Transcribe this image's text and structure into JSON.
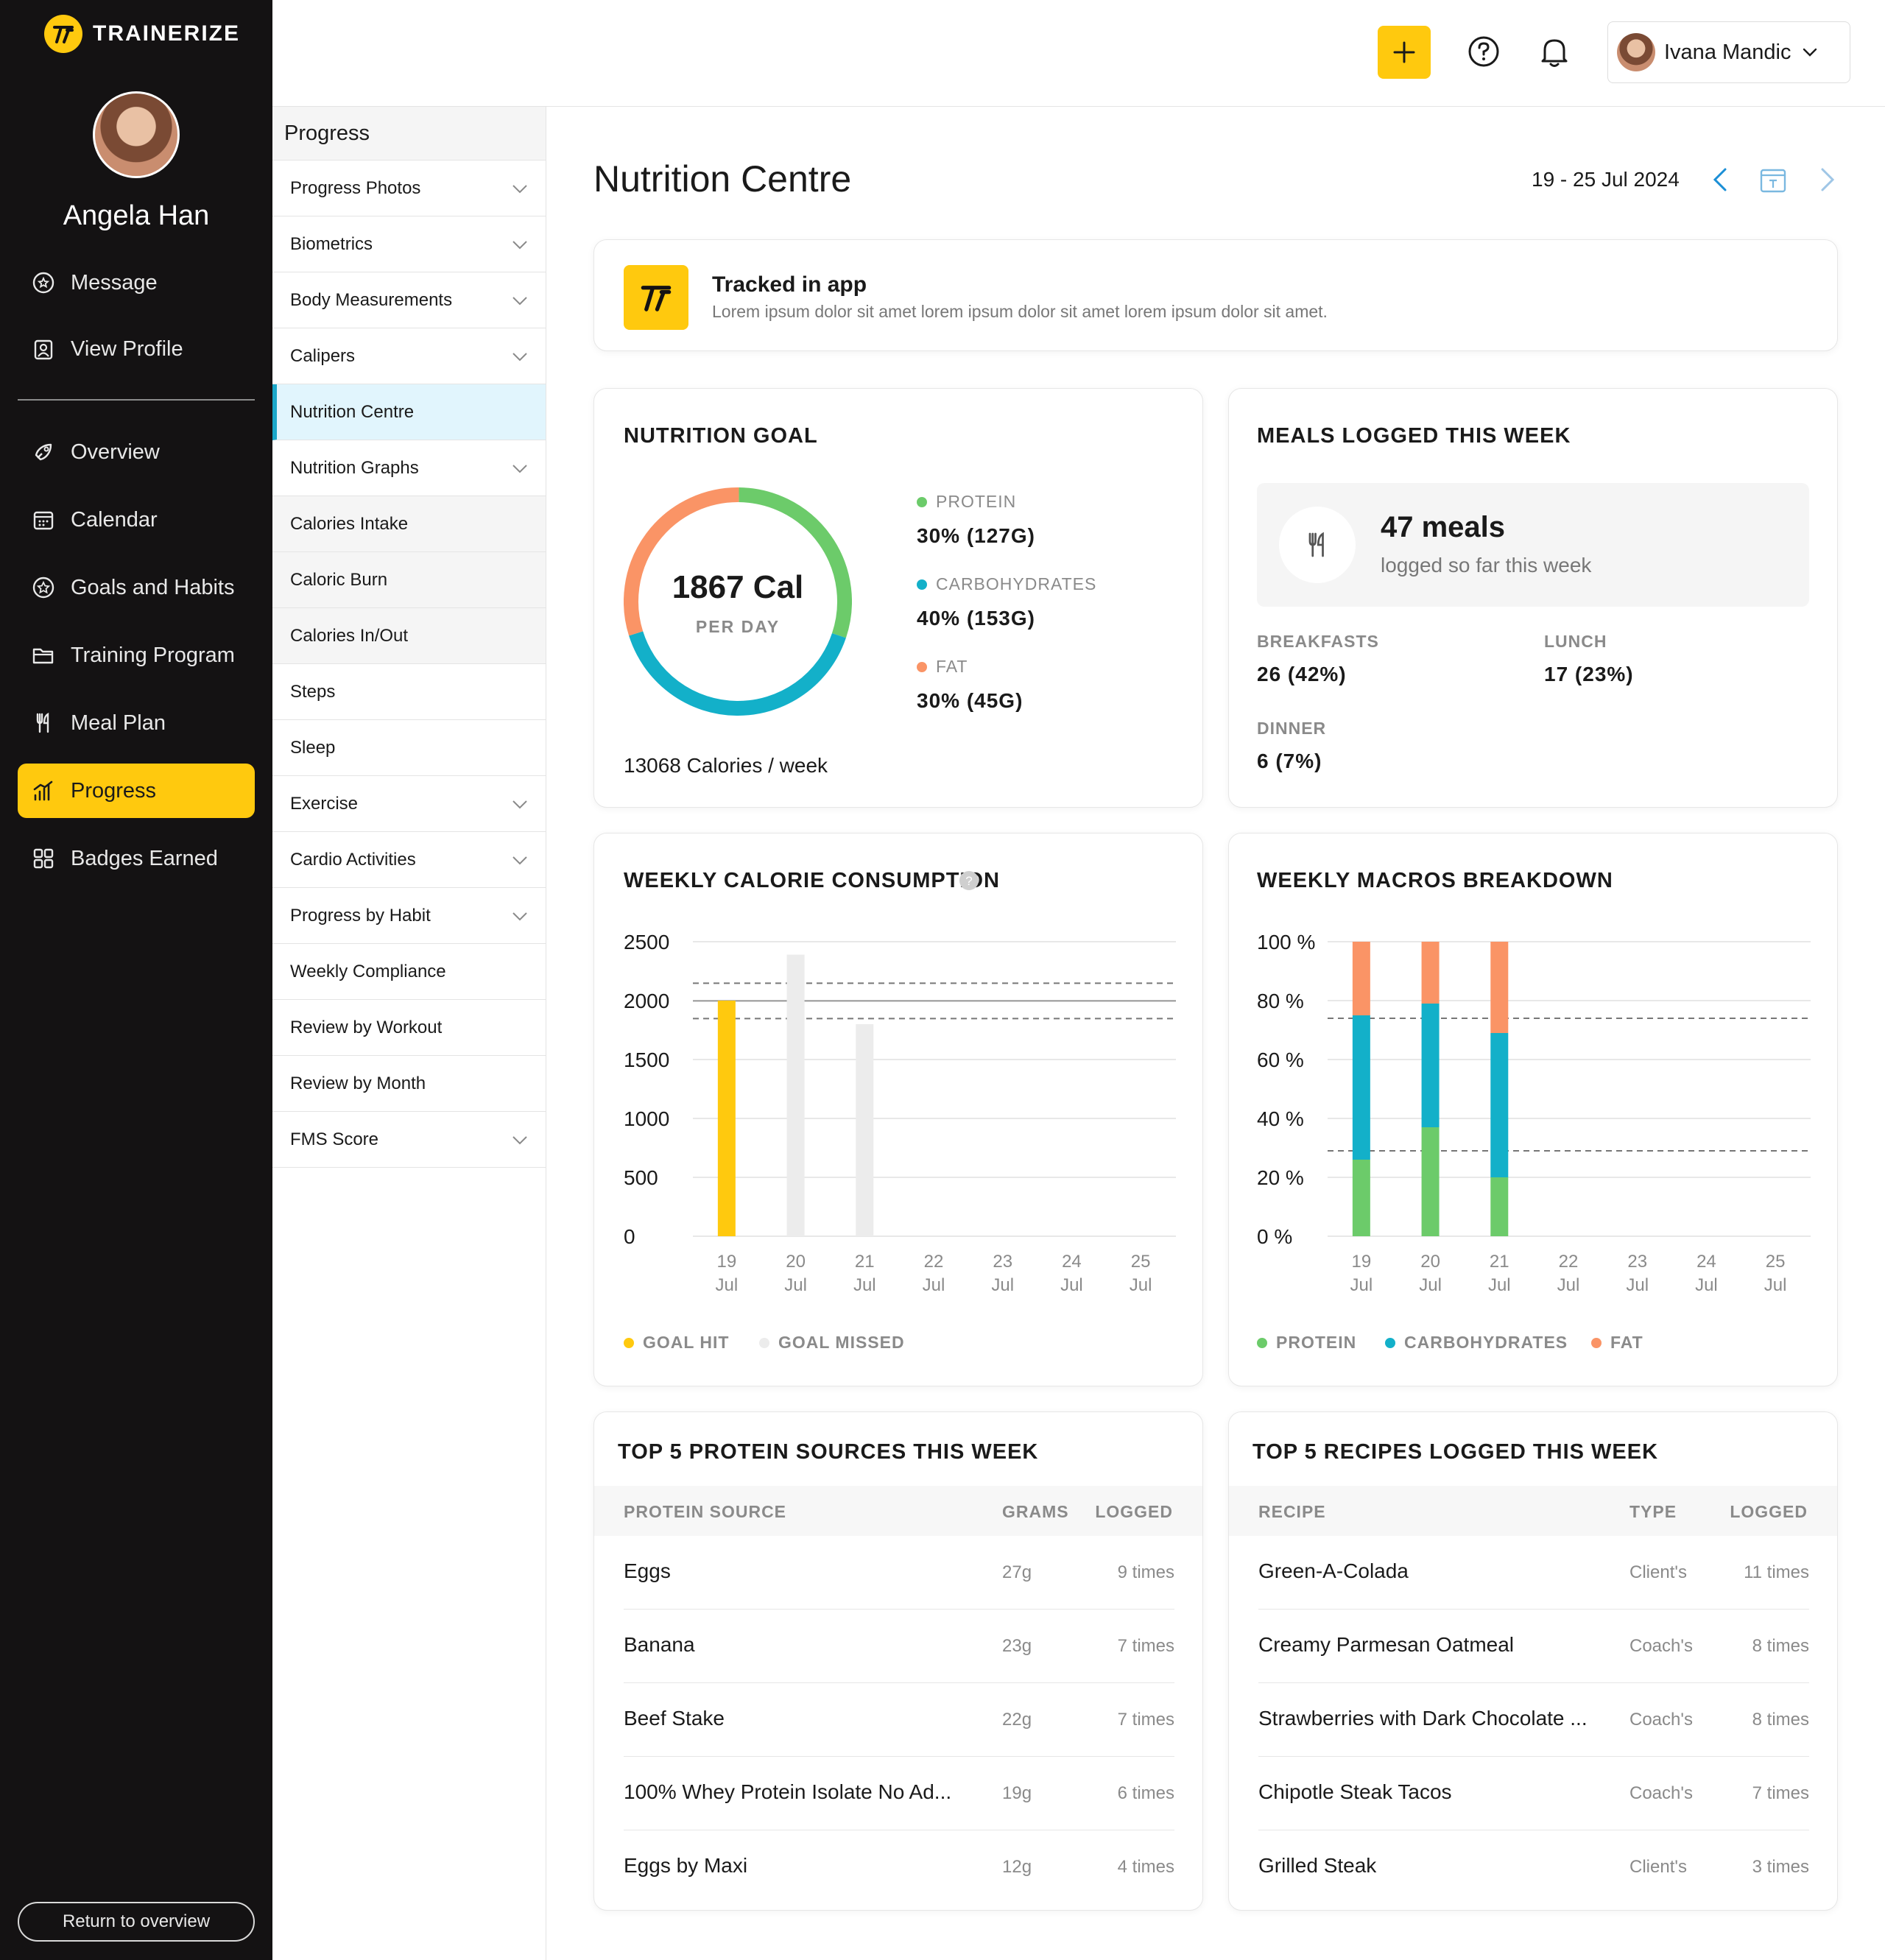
{
  "brand": {
    "name": "TRAINERIZE"
  },
  "client": {
    "name": "Angela Han"
  },
  "sidebar": {
    "top_items": [
      {
        "label": "Message",
        "icon": "message-icon"
      },
      {
        "label": "View Profile",
        "icon": "profile-icon"
      }
    ],
    "items": [
      {
        "label": "Overview",
        "icon": "rocket-icon"
      },
      {
        "label": "Calendar",
        "icon": "calendar-icon"
      },
      {
        "label": "Goals and Habits",
        "icon": "star-icon"
      },
      {
        "label": "Training Program",
        "icon": "folder-icon"
      },
      {
        "label": "Meal Plan",
        "icon": "fork-knife-icon"
      },
      {
        "label": "Progress",
        "icon": "chart-icon",
        "active": true
      },
      {
        "label": "Badges Earned",
        "icon": "grid-icon"
      }
    ],
    "return_label": "Return to overview"
  },
  "subnav": {
    "title": "Progress",
    "items": [
      {
        "label": "Progress Photos",
        "chevron": true
      },
      {
        "label": "Biometrics",
        "chevron": true
      },
      {
        "label": "Body Measurements",
        "chevron": true
      },
      {
        "label": "Calipers",
        "chevron": true
      },
      {
        "label": "Nutrition Centre",
        "active": true
      },
      {
        "label": "Nutrition Graphs",
        "chevron": true
      },
      {
        "label": "Calories Intake",
        "child": true
      },
      {
        "label": "Caloric Burn",
        "child": true
      },
      {
        "label": "Calories In/Out",
        "child": true
      },
      {
        "label": "Steps"
      },
      {
        "label": "Sleep"
      },
      {
        "label": "Exercise",
        "chevron": true
      },
      {
        "label": "Cardio Activities",
        "chevron": true
      },
      {
        "label": "Progress by Habit",
        "chevron": true
      },
      {
        "label": "Weekly Compliance"
      },
      {
        "label": "Review by Workout"
      },
      {
        "label": "Review by Month"
      },
      {
        "label": "FMS Score",
        "chevron": true
      }
    ]
  },
  "topbar": {
    "user_name": "Ivana Mandic"
  },
  "page": {
    "title": "Nutrition Centre",
    "date_range": "19 - 25 Jul 2024"
  },
  "tracked": {
    "title": "Tracked in app",
    "subtitle": "Lorem ipsum dolor sit amet lorem ipsum dolor sit amet lorem ipsum dolor sit amet."
  },
  "nutrition_goal": {
    "title": "NUTRITION GOAL",
    "calories": "1867 Cal",
    "per_day": "PER DAY",
    "weekly": "13068 Calories / week",
    "macros": [
      {
        "label": "PROTEIN",
        "value": "30% (127G)",
        "color": "#6CCB6A",
        "pct": 30
      },
      {
        "label": "CARBOHYDRATES",
        "value": "40% (153G)",
        "color": "#13B0C9",
        "pct": 40
      },
      {
        "label": "FAT",
        "value": "30% (45G)",
        "color": "#FA9466",
        "pct": 30
      }
    ]
  },
  "meals": {
    "title": "MEALS LOGGED THIS WEEK",
    "count": "47 meals",
    "sub": "logged so far this week",
    "breakfasts_label": "BREAKFASTS",
    "breakfasts_value": "26 (42%)",
    "lunch_label": "LUNCH",
    "lunch_value": "17 (23%)",
    "dinner_label": "DINNER",
    "dinner_value": "6 (7%)"
  },
  "chart_data": [
    {
      "type": "bar",
      "title": "WEEKLY CALORIE CONSUMPTION",
      "categories": [
        "19 Jul",
        "20 Jul",
        "21 Jul",
        "22 Jul",
        "23 Jul",
        "24 Jul",
        "25 Jul"
      ],
      "category_days": [
        "19",
        "20",
        "21",
        "22",
        "23",
        "24",
        "25"
      ],
      "category_month": "Jul",
      "values": [
        2000,
        2390,
        1800,
        0,
        0,
        0,
        0
      ],
      "status": [
        "hit",
        "missed",
        "missed",
        null,
        null,
        null,
        null
      ],
      "goal": 1867,
      "goal_band": [
        1720,
        2010
      ],
      "ylim": [
        0,
        2500
      ],
      "yticks": [
        "2500",
        "2000",
        "1500",
        "1000",
        "500",
        "0"
      ],
      "legend": [
        {
          "label": "GOAL HIT",
          "color": "#FFC90E"
        },
        {
          "label": "GOAL MISSED",
          "color": "#ECECEC"
        }
      ]
    },
    {
      "type": "bar",
      "stacked": true,
      "title": "WEEKLY MACROS BREAKDOWN",
      "categories": [
        "19 Jul",
        "20 Jul",
        "21 Jul",
        "22 Jul",
        "23 Jul",
        "24 Jul",
        "25 Jul"
      ],
      "category_days": [
        "19",
        "20",
        "21",
        "22",
        "23",
        "24",
        "25"
      ],
      "category_month": "Jul",
      "series": [
        {
          "name": "PROTEIN",
          "color": "#6CCB6A",
          "values": [
            26,
            37,
            20,
            0,
            0,
            0,
            0
          ]
        },
        {
          "name": "CARBOHYDRATES",
          "color": "#13B0C9",
          "values": [
            49,
            42,
            49,
            0,
            0,
            0,
            0
          ]
        },
        {
          "name": "FAT",
          "color": "#FA9466",
          "values": [
            25,
            21,
            31,
            0,
            0,
            0,
            0
          ]
        }
      ],
      "reference_lines": [
        29,
        74
      ],
      "ylim": [
        0,
        100
      ],
      "yticks": [
        "100 %",
        "80 %",
        "60 %",
        "40 %",
        "20 %",
        "0 %"
      ]
    }
  ],
  "protein_table": {
    "title": "TOP 5 PROTEIN SOURCES THIS WEEK",
    "headers": [
      "PROTEIN SOURCE",
      "GRAMS",
      "LOGGED"
    ],
    "rows": [
      {
        "name": "Eggs",
        "grams": "27g",
        "logged": "9 times"
      },
      {
        "name": "Banana",
        "grams": "23g",
        "logged": "7 times"
      },
      {
        "name": "Beef Stake",
        "grams": "22g",
        "logged": "7 times"
      },
      {
        "name": "100% Whey Protein Isolate No Ad...",
        "grams": "19g",
        "logged": "6 times"
      },
      {
        "name": "Eggs by Maxi",
        "grams": "12g",
        "logged": "4 times"
      }
    ]
  },
  "recipes_table": {
    "title": "TOP 5 RECIPES LOGGED THIS WEEK",
    "headers": [
      "RECIPE",
      "TYPE",
      "LOGGED"
    ],
    "rows": [
      {
        "name": "Green-A-Colada",
        "type": "Client's",
        "logged": "11 times"
      },
      {
        "name": "Creamy Parmesan Oatmeal",
        "type": "Coach's",
        "logged": "8 times"
      },
      {
        "name": "Strawberries with Dark Chocolate ...",
        "type": "Coach's",
        "logged": "8 times"
      },
      {
        "name": "Chipotle Steak Tacos",
        "type": "Coach's",
        "logged": "7 times"
      },
      {
        "name": "Grilled Steak",
        "type": "Client's",
        "logged": "3 times"
      }
    ]
  }
}
